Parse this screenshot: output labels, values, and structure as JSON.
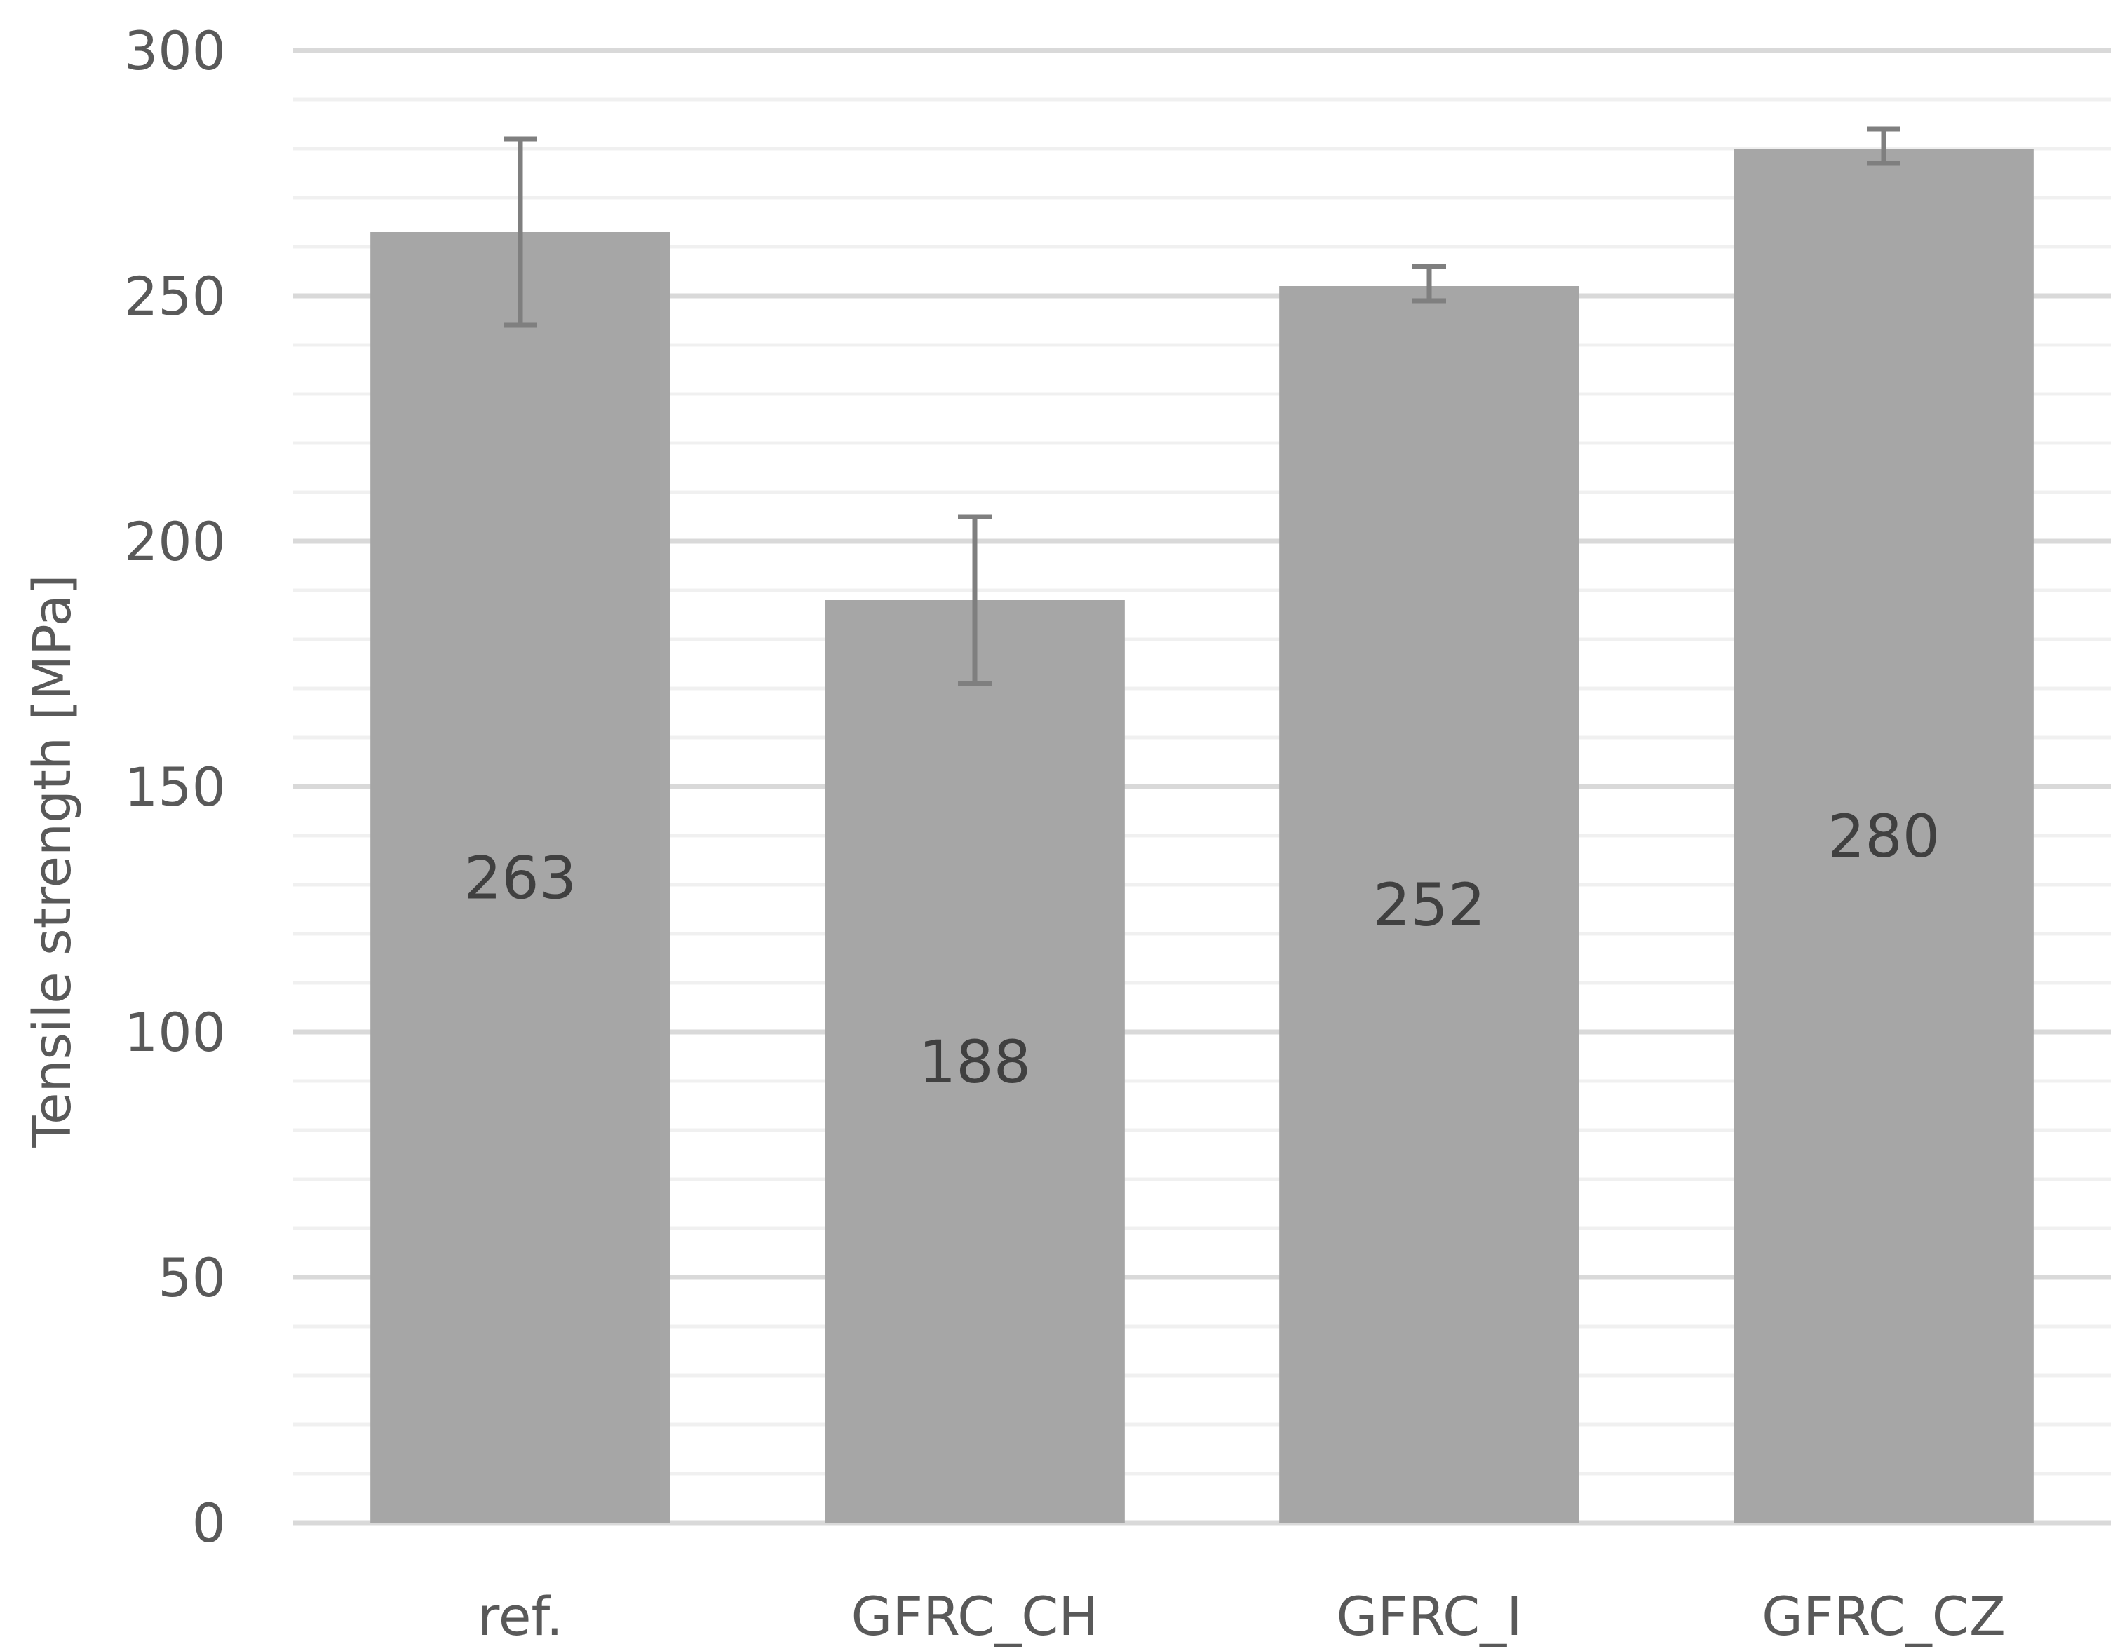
{
  "chart_data": {
    "type": "bar",
    "title": "",
    "xlabel": "",
    "ylabel": "Tensile strength [MPa]",
    "ylim": [
      0,
      300
    ],
    "major_ticks": [
      0,
      50,
      100,
      150,
      200,
      250,
      300
    ],
    "minor_step": 10,
    "grid": true,
    "legend": "none",
    "categories": [
      "ref.",
      "GFRC_CH",
      "GFRC_I",
      "GFRC_CZ"
    ],
    "series": [
      {
        "values": [
          263,
          188,
          252,
          280
        ],
        "value_labels": [
          "263",
          "188",
          "252",
          "280"
        ],
        "error_low": [
          244,
          171,
          249,
          277
        ],
        "error_high": [
          282,
          205,
          256,
          284
        ],
        "color": "#a6a6a6"
      }
    ],
    "colors": {
      "bar": "#a6a6a6",
      "error_bar": "#7f7f7f",
      "major_grid": "#d9d9d9",
      "minor_grid": "#f0f0f0",
      "text": "#595959",
      "data_label": "#404040"
    }
  }
}
